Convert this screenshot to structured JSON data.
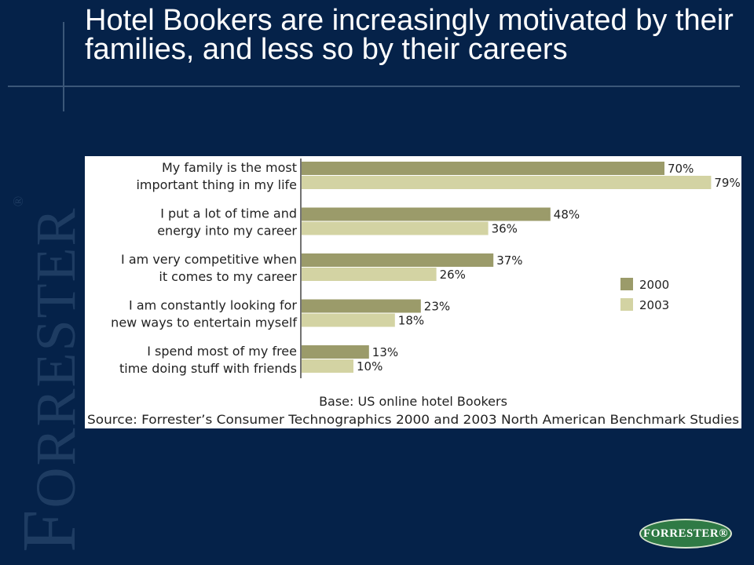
{
  "slide": {
    "title": "Hotel Bookers are increasingly motivated by their families, and less so by their careers"
  },
  "branding": {
    "side_logo": "FORRESTER",
    "side_logo_first": "F",
    "side_logo_rest": "ORRESTER",
    "registered_mark": "®",
    "badge_text": "FORRESTER®",
    "colors": {
      "background": "#052249",
      "badge_green": "#2f7a45"
    }
  },
  "chart_data": {
    "type": "bar",
    "orientation": "horizontal",
    "categories": [
      [
        "My family is the most",
        "important thing in my life"
      ],
      [
        "I put a lot of time and",
        "energy into my career"
      ],
      [
        "I am very competitive when",
        "it comes to my career"
      ],
      [
        "I am constantly looking for",
        "new ways to entertain myself"
      ],
      [
        "I spend most of my free",
        "time doing stuff with friends"
      ]
    ],
    "series": [
      {
        "name": "2000",
        "values": [
          70,
          48,
          37,
          23,
          13
        ],
        "labels": [
          "70%",
          "48%",
          "37%",
          "23%",
          "13%"
        ],
        "color": "#9b9b6a"
      },
      {
        "name": "2003",
        "values": [
          79,
          36,
          26,
          18,
          10
        ],
        "labels": [
          "79%",
          "36%",
          "26%",
          "18%",
          "10%"
        ],
        "color": "#d3d3a3"
      }
    ],
    "xlim": [
      0,
      100
    ],
    "grid": false,
    "legend_position": "right",
    "notes": [
      "Base: US online hotel Bookers",
      "Source: Forrester’s Consumer Technographics 2000 and 2003 North American Benchmark Studies"
    ]
  }
}
